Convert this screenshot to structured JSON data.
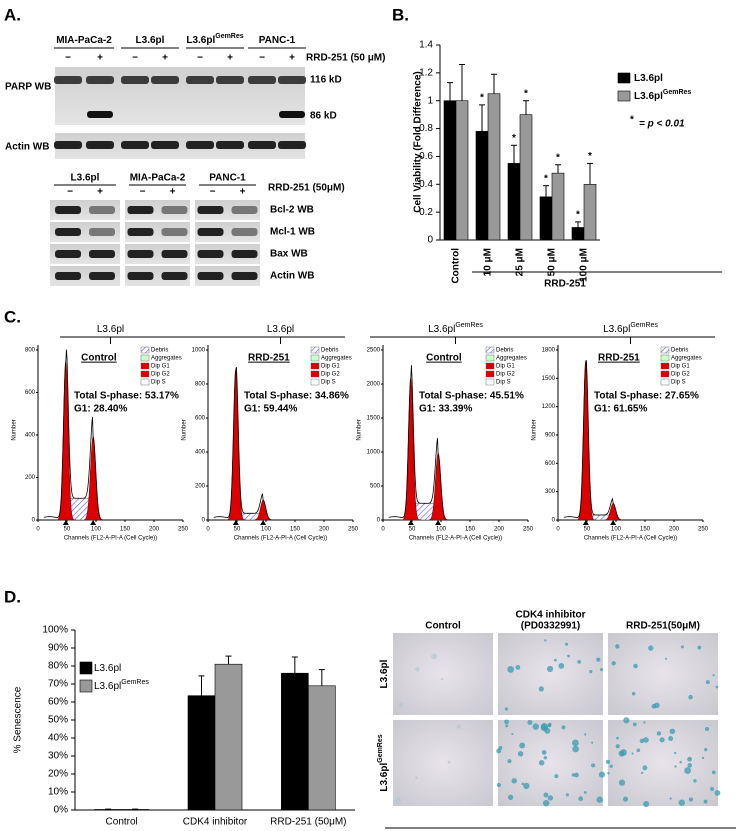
{
  "panel_labels": [
    "A.",
    "B.",
    "C.",
    "D."
  ],
  "blot_top": {
    "cell_lines": [
      {
        "name": "MIA-PaCa-2"
      },
      {
        "name": "L3.6pl"
      },
      {
        "name": "L3.6pl",
        "sup": "GemRes"
      },
      {
        "name": "PANC-1"
      }
    ],
    "signs": [
      "−",
      "+"
    ],
    "treatment": "RRD-251 (50 μM)",
    "rows": [
      "PARP WB",
      "Actin WB"
    ],
    "sizes": [
      "116 kD",
      "86 kD"
    ]
  },
  "blot_bottom": {
    "cell_lines": [
      "L3.6pl",
      "MIA-PaCa-2",
      "PANC-1"
    ],
    "treatment": "RRD-251 (50μM)",
    "rows": [
      "Bcl-2 WB",
      "Mcl-1 WB",
      "Bax WB",
      "Actin WB"
    ]
  },
  "flow": {
    "groups": [
      {
        "name": "L3.6pl"
      },
      {
        "name": "L3.6pl"
      },
      {
        "name": "L3.6pl",
        "sup": "GemRes"
      },
      {
        "name": "L3.6pl",
        "sup": "GemRes"
      }
    ],
    "legend": [
      "Debris",
      "Aggregates",
      "Dip G1",
      "Dip G2",
      "Dip S"
    ],
    "x_label": "Channels (FL2-A-PI-A (Cell Cycle))",
    "y_label": "Number",
    "xticks": [
      "0",
      "50",
      "100",
      "150",
      "200",
      "250"
    ],
    "plots": [
      {
        "title": "Control",
        "s_phase": "Total S-phase: 53.17%",
        "g1": "G1: 28.40%",
        "yticks": [
          "0",
          "200",
          "400",
          "600",
          "800"
        ]
      },
      {
        "title": "RRD-251",
        "s_phase": "Total S-phase: 34.86%",
        "g1": "G1: 59.44%",
        "yticks": [
          "0",
          "200",
          "400",
          "600",
          "800",
          "1000"
        ]
      },
      {
        "title": "Control",
        "s_phase": "Total S-phase: 45.51%",
        "g1": "G1: 33.39%",
        "yticks": [
          "0",
          "500",
          "1000",
          "1500",
          "2000",
          "2500"
        ]
      },
      {
        "title": "RRD-251",
        "s_phase": "Total S-phase: 27.65%",
        "g1": "G1: 61.65%",
        "yticks": [
          "0",
          "300",
          "600",
          "900",
          "1200",
          "1500",
          "1800"
        ]
      }
    ]
  },
  "senescence_images": {
    "columns": [
      [
        "Control"
      ],
      [
        "CDK4 inhibitor",
        "(PD0332991)"
      ],
      [
        "RRD-251(50μM)"
      ]
    ],
    "rows": [
      {
        "name": "L3.6pl"
      },
      {
        "name": "L3.6pl",
        "sup": "GemRes"
      }
    ]
  },
  "chart_data": [
    {
      "type": "bar",
      "y_label": "Cell Viability (Fold Difference)",
      "categories": [
        "Control",
        "10 μM",
        "25 μM",
        "50 μM",
        "100 μM"
      ],
      "group_label": "RRD-251",
      "series": [
        {
          "name": "L3.6pl",
          "color": "#000000",
          "values": [
            1.0,
            0.78,
            0.55,
            0.31,
            0.09
          ],
          "errors": [
            0.13,
            0.19,
            0.13,
            0.08,
            0.04
          ],
          "markers": [
            null,
            "*",
            "*",
            "*",
            "*"
          ]
        },
        {
          "name": "L3.6pl",
          "superscript": "GemRes",
          "color": "#999999",
          "values": [
            1.0,
            1.05,
            0.9,
            0.48,
            0.4
          ],
          "errors": [
            0.26,
            0.14,
            0.1,
            0.06,
            0.15
          ],
          "markers": [
            null,
            null,
            "*",
            "*",
            "*"
          ]
        }
      ],
      "annotation_marker": "*",
      "annotation": "= p < 0.01",
      "ylim": [
        0,
        1.4
      ],
      "yticks": [
        0,
        0.2,
        0.4,
        0.6,
        0.8,
        1,
        1.2,
        1.4
      ]
    },
    {
      "type": "bar",
      "y_label": "% Senescence",
      "categories": [
        "Control",
        "CDK4 inhibitor",
        "RRD-251 (50μM)"
      ],
      "series": [
        {
          "name": "L3.6pl",
          "color": "#000000",
          "values": [
            0.3,
            63.5,
            76
          ],
          "errors": [
            0.2,
            11,
            9
          ]
        },
        {
          "name": "L3.6pl",
          "superscript": "GemRes",
          "color": "#999999",
          "values": [
            0.3,
            81,
            69
          ],
          "errors": [
            0.2,
            4.5,
            9
          ]
        }
      ],
      "ylim": [
        0,
        100
      ],
      "yticks": [
        {
          "value": 0,
          "label": "0%"
        },
        {
          "value": 10,
          "label": "10%"
        },
        {
          "value": 20,
          "label": "20%"
        },
        {
          "value": 30,
          "label": "30%"
        },
        {
          "value": 40,
          "label": "40%"
        },
        {
          "value": 50,
          "label": "50%"
        },
        {
          "value": 60,
          "label": "60%"
        },
        {
          "value": 70,
          "label": "70%"
        },
        {
          "value": 80,
          "label": "80%"
        },
        {
          "value": 90,
          "label": "90%"
        },
        {
          "value": 100,
          "label": "100%"
        }
      ]
    }
  ]
}
